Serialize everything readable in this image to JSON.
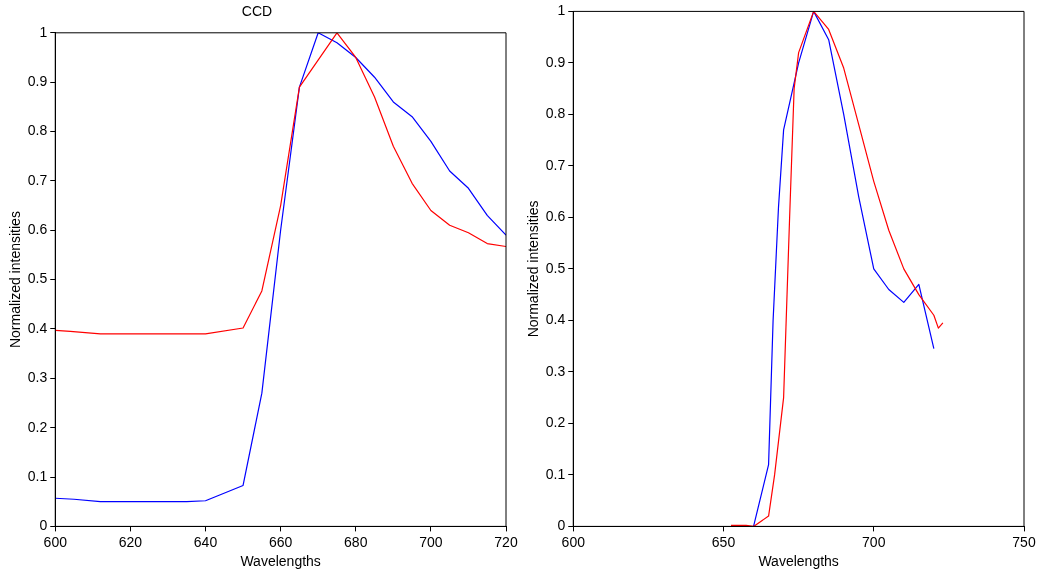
{
  "chart_data": [
    {
      "type": "line",
      "title": "CCD",
      "xlabel": "Wavelengths",
      "ylabel": "Normalized intensities",
      "xlim": [
        600,
        720
      ],
      "xticks": [
        600,
        620,
        640,
        660,
        680,
        700,
        720
      ],
      "ylim": [
        0,
        1
      ],
      "yticks": [
        0,
        0.1,
        0.2,
        0.3,
        0.4,
        0.5,
        0.6,
        0.7,
        0.8,
        0.9,
        1
      ],
      "series": [
        {
          "color": "#ff0000",
          "x": [
            600,
            604,
            612,
            640,
            650,
            655,
            660,
            665,
            675,
            680,
            685,
            690,
            695,
            700,
            705,
            710,
            715,
            720
          ],
          "values": [
            0.397,
            0.395,
            0.39,
            0.39,
            0.402,
            0.477,
            0.65,
            0.89,
            1.0,
            0.95,
            0.87,
            0.77,
            0.695,
            0.64,
            0.61,
            0.595,
            0.573,
            0.567
          ]
        },
        {
          "color": "#0000ff",
          "x": [
            600,
            605,
            612,
            635,
            640,
            650,
            655,
            660,
            665,
            670,
            675,
            680,
            685,
            690,
            695,
            700,
            705,
            710,
            715,
            720
          ],
          "values": [
            0.057,
            0.055,
            0.05,
            0.05,
            0.052,
            0.083,
            0.27,
            0.6,
            0.89,
            1.0,
            0.98,
            0.95,
            0.91,
            0.86,
            0.83,
            0.78,
            0.72,
            0.685,
            0.63,
            0.59
          ]
        }
      ]
    },
    {
      "type": "line",
      "xlabel": "Wavelengths",
      "ylabel": "Normalized intensities",
      "xlim": [
        600,
        750
      ],
      "xticks": [
        600,
        650,
        700,
        750
      ],
      "ylim": [
        0,
        1
      ],
      "yticks": [
        0,
        0.1,
        0.2,
        0.3,
        0.4,
        0.5,
        0.6,
        0.7,
        0.8,
        0.9,
        1
      ],
      "series": [
        {
          "color": "#ff0000",
          "x": [
            652.5,
            657.5,
            660,
            665,
            667,
            670,
            672,
            673.5,
            675,
            680,
            685,
            690,
            695,
            700,
            705,
            710,
            715,
            720,
            721.5,
            723
          ],
          "values": [
            0.002,
            0.002,
            0,
            0.02,
            0.1,
            0.25,
            0.6,
            0.85,
            0.92,
            1.0,
            0.965,
            0.89,
            0.78,
            0.67,
            0.575,
            0.5,
            0.45,
            0.41,
            0.385,
            0.395
          ]
        },
        {
          "color": "#0000ff",
          "x": [
            660,
            665,
            666.5,
            668.3,
            670,
            675,
            680,
            685,
            690,
            695,
            700,
            705,
            710,
            715,
            720
          ],
          "values": [
            0,
            0.12,
            0.4,
            0.62,
            0.77,
            0.9,
            1.0,
            0.945,
            0.8,
            0.64,
            0.5,
            0.46,
            0.435,
            0.47,
            0.345
          ]
        }
      ]
    }
  ]
}
